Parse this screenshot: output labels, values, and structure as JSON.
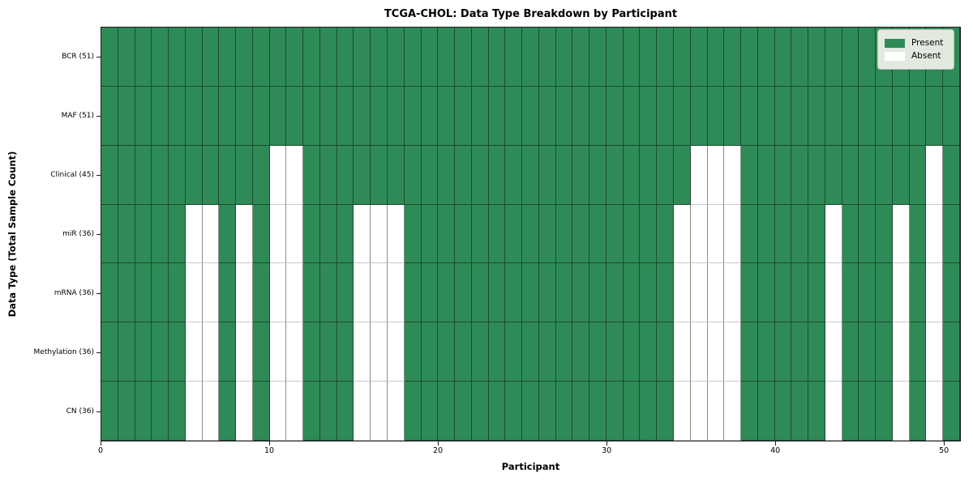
{
  "title": "TCGA-CHOL: Data Type Breakdown by Participant",
  "x_axis": {
    "label": "Participant",
    "ticks": [
      0,
      10,
      20,
      30,
      40,
      50
    ],
    "range": [
      0,
      51
    ]
  },
  "y_axis": {
    "label": "Data Type (Total Sample Count)"
  },
  "legend": {
    "items": [
      {
        "label": "Present",
        "color": "#2E8B57"
      },
      {
        "label": "Absent",
        "color": "#FFFFFF"
      }
    ]
  },
  "chart_data": {
    "type": "heatmap",
    "title": "TCGA-CHOL: Data Type Breakdown by Participant",
    "xlabel": "Participant",
    "ylabel": "Data Type (Total Sample Count)",
    "x_range": [
      0,
      51
    ],
    "x_ticks": [
      0,
      10,
      20,
      30,
      40,
      50
    ],
    "n_participants": 51,
    "grid": true,
    "legend_position": "upper right",
    "colors": {
      "present": "#2E8B57",
      "absent": "#FFFFFF"
    },
    "legend_entries": [
      "Present",
      "Absent"
    ],
    "rows": [
      {
        "label": "BCR (51)",
        "data_type": "BCR",
        "present_count": 51,
        "absent_participants": []
      },
      {
        "label": "MAF (51)",
        "data_type": "MAF",
        "present_count": 51,
        "absent_participants": []
      },
      {
        "label": "Clinical (45)",
        "data_type": "Clinical",
        "present_count": 45,
        "absent_participants": [
          10,
          11,
          35,
          36,
          37,
          49
        ]
      },
      {
        "label": "miR (36)",
        "data_type": "miR",
        "present_count": 36,
        "absent_participants": [
          5,
          6,
          8,
          10,
          11,
          15,
          16,
          17,
          34,
          35,
          36,
          37,
          43,
          47,
          49
        ]
      },
      {
        "label": "mRNA (36)",
        "data_type": "mRNA",
        "present_count": 36,
        "absent_participants": [
          5,
          6,
          8,
          10,
          11,
          15,
          16,
          17,
          34,
          35,
          36,
          37,
          43,
          47,
          49
        ]
      },
      {
        "label": "Methylation (36)",
        "data_type": "Methylation",
        "present_count": 36,
        "absent_participants": [
          5,
          6,
          8,
          10,
          11,
          15,
          16,
          17,
          34,
          35,
          36,
          37,
          43,
          47,
          49
        ]
      },
      {
        "label": "CN (36)",
        "data_type": "CN",
        "present_count": 36,
        "absent_participants": [
          5,
          6,
          8,
          10,
          11,
          15,
          16,
          17,
          34,
          35,
          36,
          37,
          43,
          47,
          49
        ]
      }
    ]
  }
}
